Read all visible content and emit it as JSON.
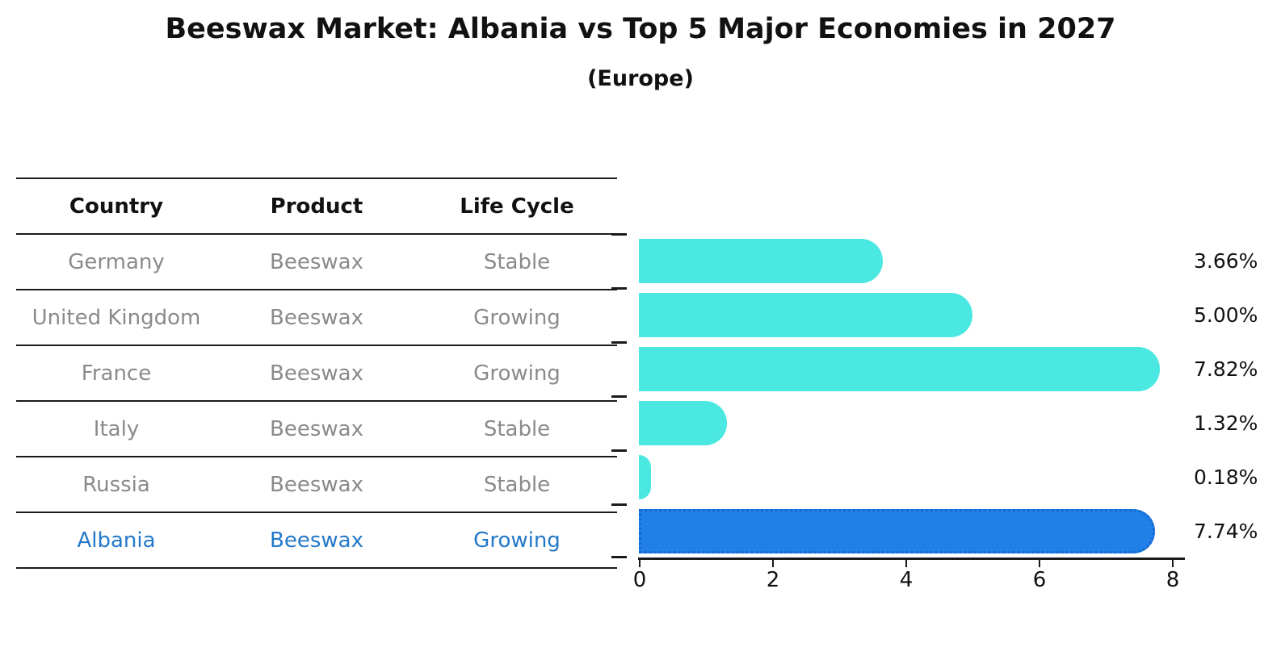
{
  "title": "Beeswax Market: Albania vs Top 5 Major Economies in 2027",
  "subtitle": "(Europe)",
  "table": {
    "headers": [
      "Country",
      "Product",
      "Life Cycle"
    ],
    "rows": [
      {
        "country": "Germany",
        "product": "Beeswax",
        "life_cycle": "Stable"
      },
      {
        "country": "United Kingdom",
        "product": "Beeswax",
        "life_cycle": "Growing"
      },
      {
        "country": "France",
        "product": "Beeswax",
        "life_cycle": "Growing"
      },
      {
        "country": "Italy",
        "product": "Beeswax",
        "life_cycle": "Stable"
      },
      {
        "country": "Russia",
        "product": "Beeswax",
        "life_cycle": "Stable"
      },
      {
        "country": "Albania",
        "product": "Beeswax",
        "life_cycle": "Growing"
      }
    ],
    "highlight_row": "Albania"
  },
  "chart_data": {
    "type": "bar",
    "orientation": "horizontal",
    "title": "Beeswax Market: Albania vs Top 5 Major Economies in 2027",
    "subtitle": "(Europe)",
    "categories": [
      "Germany",
      "United Kingdom",
      "France",
      "Italy",
      "Russia",
      "Albania"
    ],
    "values": [
      3.66,
      5.0,
      7.82,
      1.32,
      0.18,
      7.74
    ],
    "value_labels": [
      "3.66%",
      "5.00%",
      "7.82%",
      "1.32%",
      "0.18%",
      "7.74%"
    ],
    "xlabel": "",
    "ylabel": "",
    "xlim": [
      0,
      8.2
    ],
    "xticks": [
      "0",
      "2",
      "4",
      "6",
      "8"
    ],
    "grid": false,
    "legend": false,
    "highlight_index": 5,
    "colors": {
      "bar": "#4be8e2",
      "highlight_bar": "#2080e8",
      "highlight_edge": "#1468d0",
      "highlight_text": "#2478c8",
      "text": "#111111",
      "muted_text": "#8a8a8a"
    }
  }
}
